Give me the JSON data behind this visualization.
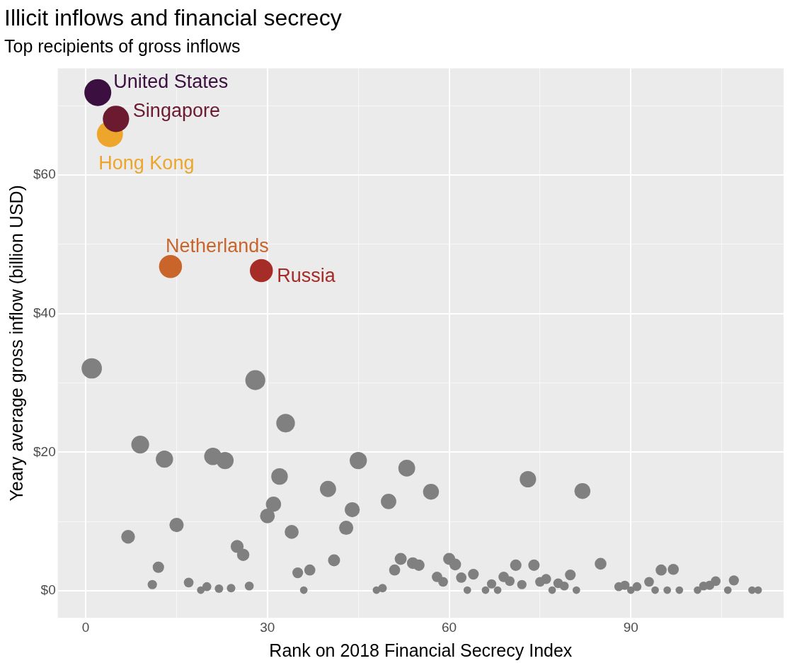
{
  "chart_data": {
    "type": "bubble",
    "title": "Illicit inflows and financial secrecy",
    "subtitle": "Top recipients of gross inflows",
    "xlabel": "Rank on 2018 Financial Secrecy Index",
    "ylabel": "Yeary average gross inflow (billion USD)",
    "xlim": [
      -4.6,
      115.2
    ],
    "xticks": [
      0,
      {
        "value": 15,
        "label": null
      },
      30,
      {
        "value": 45,
        "label": null
      },
      60,
      {
        "value": 75,
        "label": null
      },
      90,
      {
        "value": 105,
        "label": null
      }
    ],
    "ylim": [
      -3.9,
      75.4
    ],
    "yticks": [
      {
        "value": 0,
        "label": "$0"
      },
      {
        "value": 10,
        "label": null
      },
      {
        "value": 20,
        "label": "$20"
      },
      {
        "value": 30,
        "label": null
      },
      {
        "value": 40,
        "label": "$40"
      },
      {
        "value": 50,
        "label": null
      },
      {
        "value": 60,
        "label": "$60"
      },
      {
        "value": 70,
        "label": null
      }
    ],
    "grid": true,
    "legend": false,
    "marker": "circle",
    "series": [
      {
        "color": "#808080",
        "x": [
          1,
          7,
          9,
          11,
          12,
          13,
          15,
          17,
          19,
          20,
          21,
          22,
          23,
          24,
          25,
          26,
          27,
          28,
          30,
          31,
          32,
          33,
          34,
          35,
          36,
          37,
          40,
          41,
          43,
          44,
          45,
          48,
          49,
          50,
          51,
          52,
          53,
          54,
          55,
          57,
          58,
          59,
          60,
          61,
          62,
          63,
          64,
          66,
          67,
          68,
          69,
          70,
          71,
          72,
          73,
          74,
          75,
          76,
          77,
          78,
          79,
          80,
          81,
          82,
          85,
          88,
          89,
          90,
          91,
          93,
          94,
          95,
          96,
          97,
          98,
          101,
          102,
          103,
          104,
          106,
          107,
          110,
          111
        ],
        "values": [
          32.1,
          7.8,
          21.1,
          0.9,
          3.4,
          19.0,
          9.5,
          1.2,
          0.1,
          0.6,
          19.4,
          0.3,
          18.8,
          0.4,
          6.4,
          5.2,
          0.7,
          30.4,
          10.8,
          12.5,
          16.5,
          24.2,
          8.5,
          2.6,
          0.1,
          3.0,
          14.7,
          4.4,
          9.1,
          11.7,
          18.8,
          0.1,
          0.4,
          12.9,
          3.0,
          4.6,
          17.7,
          4.0,
          3.7,
          14.3,
          2.0,
          1.3,
          4.6,
          3.8,
          1.9,
          0.1,
          2.4,
          0.1,
          1.0,
          0.1,
          2.0,
          1.4,
          3.7,
          0.9,
          16.1,
          3.7,
          1.3,
          1.7,
          0.1,
          1.1,
          0.7,
          2.3,
          0.1,
          14.4,
          3.9,
          0.6,
          0.8,
          0.1,
          0.6,
          1.3,
          0.1,
          3.0,
          0.1,
          3.1,
          0.1,
          0.1,
          0.7,
          0.8,
          1.4,
          0.1,
          1.5,
          0.1,
          0.1
        ],
        "sizes": [
          0.57,
          0.26,
          0.44,
          0.12,
          0.18,
          0.41,
          0.28,
          0.13,
          0.08,
          0.11,
          0.42,
          0.1,
          0.41,
          0.1,
          0.23,
          0.21,
          0.11,
          0.55,
          0.3,
          0.32,
          0.38,
          0.48,
          0.27,
          0.16,
          0.08,
          0.17,
          0.36,
          0.2,
          0.28,
          0.31,
          0.41,
          0.08,
          0.1,
          0.33,
          0.17,
          0.2,
          0.39,
          0.19,
          0.18,
          0.35,
          0.15,
          0.13,
          0.2,
          0.19,
          0.15,
          0.08,
          0.16,
          0.08,
          0.12,
          0.08,
          0.15,
          0.13,
          0.18,
          0.12,
          0.37,
          0.18,
          0.13,
          0.14,
          0.08,
          0.13,
          0.11,
          0.16,
          0.08,
          0.35,
          0.19,
          0.11,
          0.12,
          0.08,
          0.11,
          0.13,
          0.08,
          0.17,
          0.08,
          0.17,
          0.08,
          0.08,
          0.11,
          0.12,
          0.13,
          0.08,
          0.14,
          0.08,
          0.08
        ]
      },
      {
        "name": "United States",
        "color": "#3b0f3f",
        "x": [
          2
        ],
        "values": [
          71.9
        ],
        "sizes": [
          1
        ]
      },
      {
        "name": "Singapore",
        "color": "#6b1a30",
        "x": [
          5
        ],
        "values": [
          68.1
        ],
        "sizes": [
          0.96
        ]
      },
      {
        "name": "Hong Kong",
        "color": "#eda52b",
        "x": [
          4
        ],
        "values": [
          65.9
        ],
        "sizes": [
          0.94
        ]
      },
      {
        "name": "Netherlands",
        "color": "#c9642a",
        "x": [
          14
        ],
        "values": [
          46.8
        ],
        "sizes": [
          0.73
        ]
      },
      {
        "name": "Russia",
        "color": "#a62c28",
        "x": [
          29
        ],
        "values": [
          46.2
        ],
        "sizes": [
          0.73
        ]
      }
    ]
  }
}
